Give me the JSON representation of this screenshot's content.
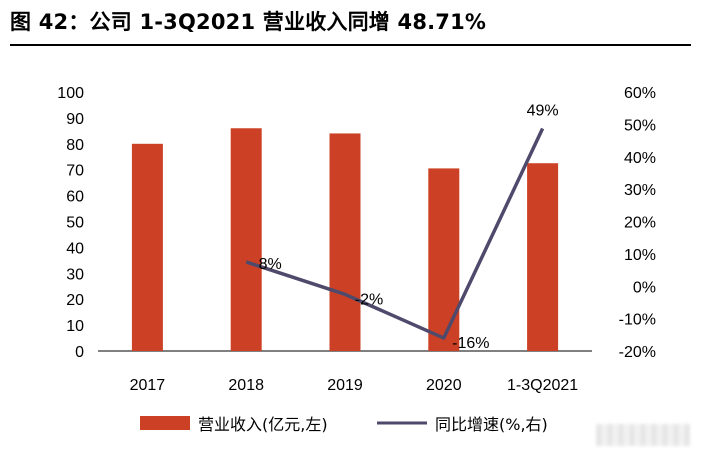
{
  "title": "图 42：公司 1-3Q2021 营业收入同增 48.71%",
  "chart_data": {
    "type": "bar+line",
    "categories": [
      "2017",
      "2018",
      "2019",
      "2020",
      "1-3Q2021"
    ],
    "series": [
      {
        "name": "营业收入(亿元,左)",
        "type": "bar",
        "axis": "left",
        "color": "#cc4125",
        "values": [
          80,
          86,
          84,
          70.5,
          72.5
        ]
      },
      {
        "name": "同比增速(%,右)",
        "type": "line",
        "axis": "right",
        "color": "#4f4a6b",
        "values": [
          null,
          7.5,
          -2.5,
          -16,
          48.71
        ],
        "labels": [
          "",
          "8%",
          "-2%",
          "-16%",
          "49%"
        ]
      }
    ],
    "left_axis": {
      "min": 0,
      "max": 100,
      "step": 10,
      "tick_labels": [
        "0",
        "10",
        "20",
        "30",
        "40",
        "50",
        "60",
        "70",
        "80",
        "90",
        "100"
      ]
    },
    "right_axis": {
      "min": -20,
      "max": 60,
      "step": 10,
      "tick_labels": [
        "-20%",
        "-10%",
        "0%",
        "10%",
        "20%",
        "30%",
        "40%",
        "50%",
        "60%"
      ]
    },
    "legend": {
      "position": "bottom",
      "items": [
        {
          "label": "营业收入(亿元,左)",
          "kind": "bar"
        },
        {
          "label": "同比增速(%,右)",
          "kind": "line"
        }
      ]
    }
  }
}
